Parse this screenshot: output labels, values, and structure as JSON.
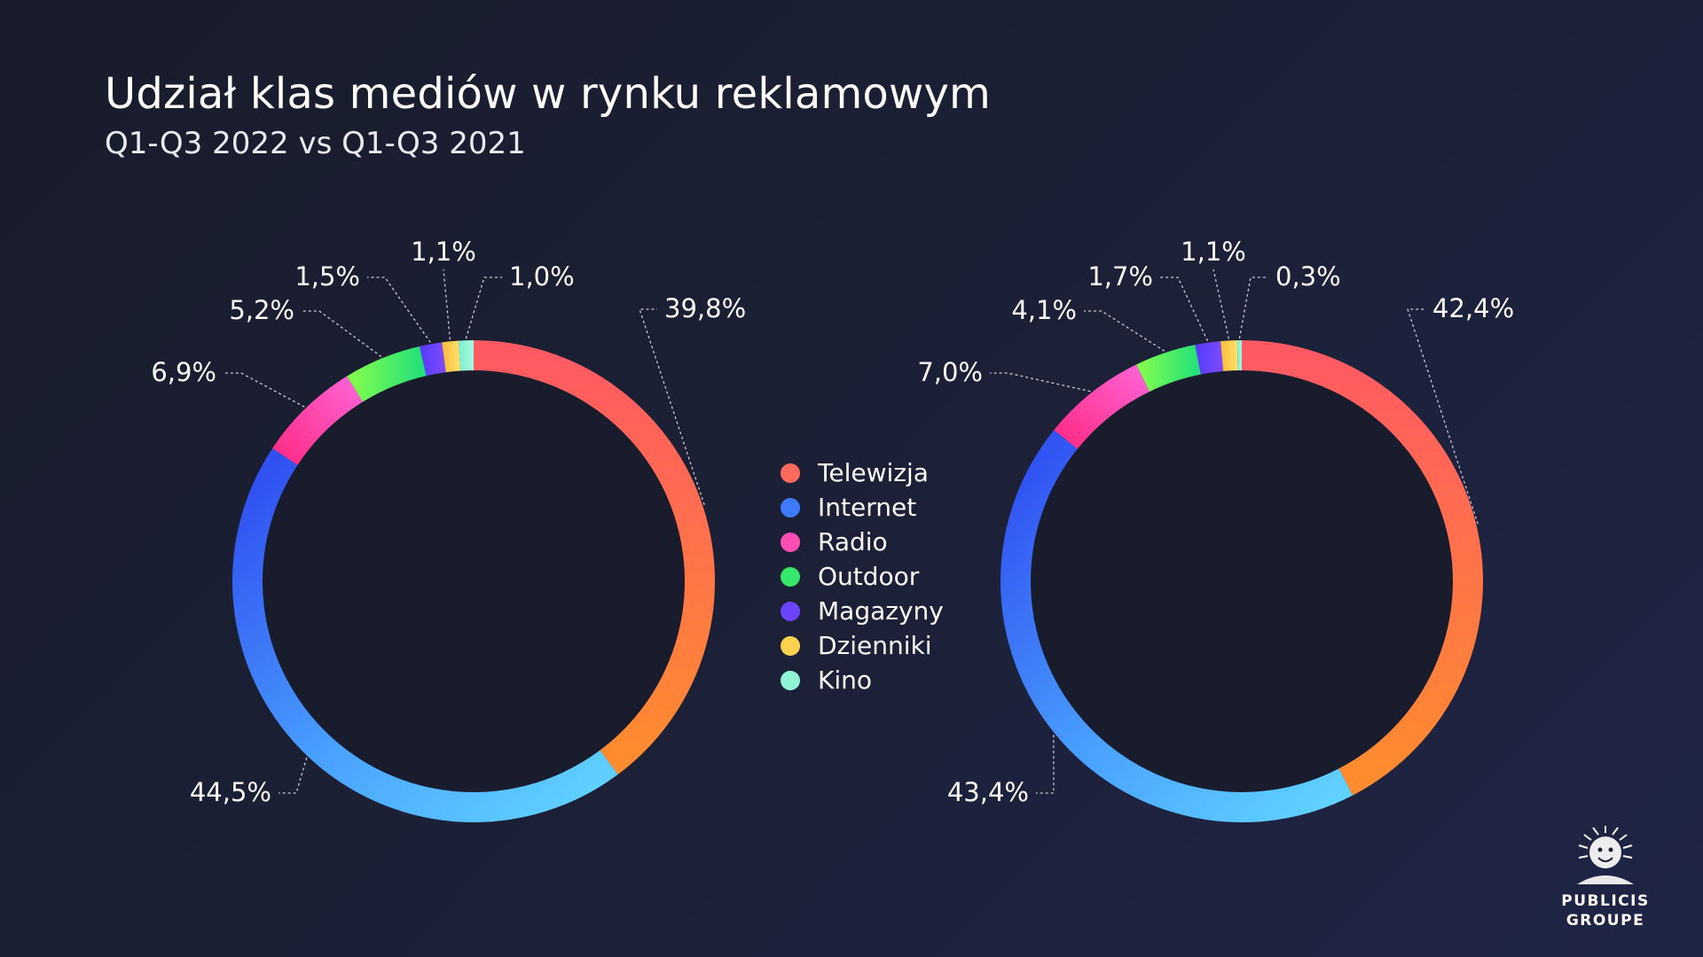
{
  "title": "Udział klas mediów w rynku reklamowym",
  "subtitle": "Q1-Q3 2022 vs Q1-Q3 2021",
  "legend": [
    {
      "label": "Telewizja",
      "color": "#ff6a5c"
    },
    {
      "label": "Internet",
      "color": "#3f7bff"
    },
    {
      "label": "Radio",
      "color": "#ff4db3"
    },
    {
      "label": "Outdoor",
      "color": "#35e86b"
    },
    {
      "label": "Magazyny",
      "color": "#6a44ff"
    },
    {
      "label": "Dzienniki",
      "color": "#ffd14f"
    },
    {
      "label": "Kino",
      "color": "#8ff3d6"
    }
  ],
  "logo": {
    "line1": "PUBLICIS",
    "line2": "GROUPE"
  },
  "chart_data": [
    {
      "type": "pie",
      "donut": true,
      "categories": [
        "Telewizja",
        "Internet",
        "Radio",
        "Outdoor",
        "Magazyny",
        "Dzienniki",
        "Kino"
      ],
      "values": [
        39.8,
        44.5,
        6.9,
        5.2,
        1.5,
        1.1,
        1.0
      ],
      "labels": [
        "39,8%",
        "44,5%",
        "6,9%",
        "5,2%",
        "1,5%",
        "1,1%",
        "1,0%"
      ]
    },
    {
      "type": "pie",
      "donut": true,
      "categories": [
        "Telewizja",
        "Internet",
        "Radio",
        "Outdoor",
        "Magazyny",
        "Dzienniki",
        "Kino"
      ],
      "values": [
        42.4,
        43.4,
        7.0,
        4.1,
        1.7,
        1.1,
        0.3
      ],
      "labels": [
        "42,4%",
        "43,4%",
        "7,0%",
        "4,1%",
        "1,7%",
        "1,1%",
        "0,3%"
      ]
    }
  ]
}
